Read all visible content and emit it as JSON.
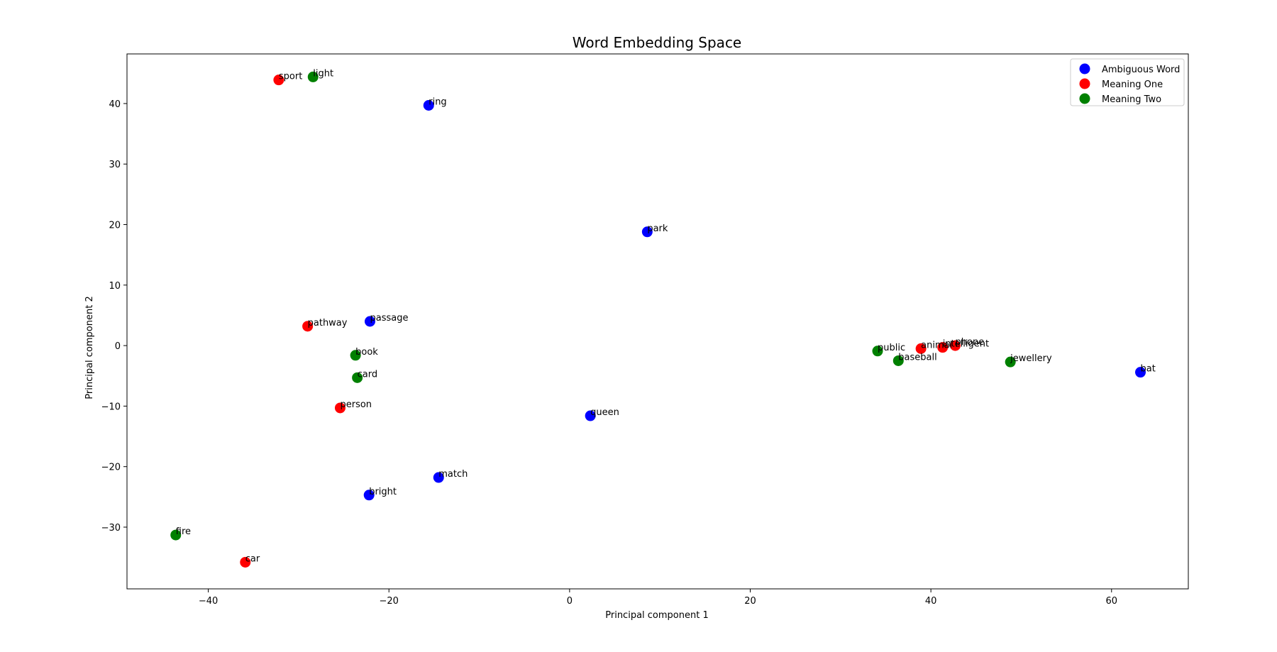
{
  "chart_data": {
    "type": "scatter",
    "title": "Word Embedding Space",
    "xlabel": "Principal component 1",
    "ylabel": "Principal component 2",
    "xlim": [
      -49,
      68.5
    ],
    "ylim": [
      -40.2,
      48.2
    ],
    "xticks": [
      -40,
      -20,
      0,
      20,
      40,
      60
    ],
    "yticks": [
      -30,
      -20,
      -10,
      0,
      10,
      20,
      30,
      40
    ],
    "grid": false,
    "legend_position": "top-right",
    "series": [
      {
        "name": "Ambiguous Word",
        "color": "#0000ff",
        "points": [
          {
            "label": "ring",
            "x": -15.6,
            "y": 39.7
          },
          {
            "label": "park",
            "x": 8.6,
            "y": 18.8
          },
          {
            "label": "passage",
            "x": -22.1,
            "y": 4.0
          },
          {
            "label": "queen",
            "x": 2.3,
            "y": -11.6
          },
          {
            "label": "match",
            "x": -14.5,
            "y": -21.8
          },
          {
            "label": "bright",
            "x": -22.2,
            "y": -24.7
          },
          {
            "label": "bat",
            "x": 63.2,
            "y": -4.4
          }
        ]
      },
      {
        "name": "Meaning One",
        "color": "#ff0000",
        "points": [
          {
            "label": "sport",
            "x": -32.2,
            "y": 43.9
          },
          {
            "label": "pathway",
            "x": -29.0,
            "y": 3.2
          },
          {
            "label": "person",
            "x": -25.4,
            "y": -10.3
          },
          {
            "label": "car",
            "x": -35.9,
            "y": -35.8
          },
          {
            "label": "animal",
            "x": 38.9,
            "y": -0.5
          },
          {
            "label": "intelligent",
            "x": 41.3,
            "y": -0.3
          },
          {
            "label": "phone",
            "x": 42.7,
            "y": 0.0
          }
        ]
      },
      {
        "name": "Meaning Two",
        "color": "#008000",
        "points": [
          {
            "label": "light",
            "x": -28.4,
            "y": 44.4
          },
          {
            "label": "book",
            "x": -23.7,
            "y": -1.6
          },
          {
            "label": "card",
            "x": -23.5,
            "y": -5.3
          },
          {
            "label": "fire",
            "x": -43.6,
            "y": -31.3
          },
          {
            "label": "public",
            "x": 34.1,
            "y": -0.9
          },
          {
            "label": "baseball",
            "x": 36.4,
            "y": -2.5
          },
          {
            "label": "jewellery",
            "x": 48.8,
            "y": -2.7
          }
        ]
      }
    ]
  }
}
